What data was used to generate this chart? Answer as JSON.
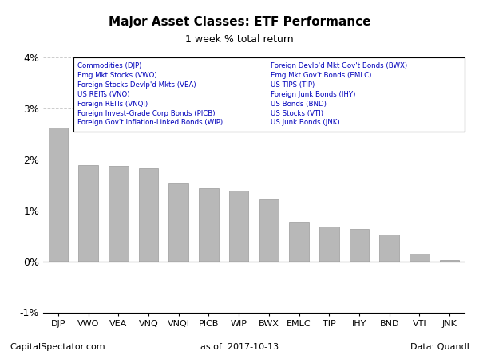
{
  "title": "Major Asset Classes: ETF Performance",
  "subtitle": "1 week % total return",
  "categories": [
    "DJP",
    "VWO",
    "VEA",
    "VNQ",
    "VNQI",
    "PICB",
    "WIP",
    "BWX",
    "EMLC",
    "TIP",
    "IHY",
    "BND",
    "VTI",
    "JNK"
  ],
  "values": [
    2.62,
    1.88,
    1.87,
    1.82,
    1.52,
    1.44,
    1.38,
    1.22,
    0.78,
    0.68,
    0.63,
    0.53,
    0.15,
    0.02
  ],
  "bar_color": "#b8b8b8",
  "bar_edge_color": "#999999",
  "ylim": [
    -1.0,
    4.0
  ],
  "yticks": [
    -1.0,
    0.0,
    1.0,
    2.0,
    3.0,
    4.0
  ],
  "ytick_labels": [
    "-1%",
    "0%",
    "1%",
    "2%",
    "3%",
    "4%"
  ],
  "footer_left": "CapitalSpectator.com",
  "footer_center": "as of  2017-10-13",
  "footer_right": "Data: Quandl",
  "legend_col1": [
    "Commodities (DJP)",
    "Emg Mkt Stocks (VWO)",
    "Foreign Stocks Devlp'd Mkts (VEA)",
    "US REITs (VNQ)",
    "Foreign REITs (VNQI)",
    "Foreign Invest-Grade Corp Bonds (PICB)",
    "Foreign Gov't Inflation-Linked Bonds (WIP)"
  ],
  "legend_col2": [
    "Foreign Devlp'd Mkt Gov't Bonds (BWX)",
    "Emg Mkt Gov't Bonds (EMLC)",
    "US TIPS (TIP)",
    "Foreign Junk Bonds (IHY)",
    "US Bonds (BND)",
    "US Stocks (VTI)",
    "US Junk Bonds (JNK)"
  ],
  "legend_text_color": "#0000bb",
  "background_color": "#ffffff",
  "grid_color": "#cccccc"
}
